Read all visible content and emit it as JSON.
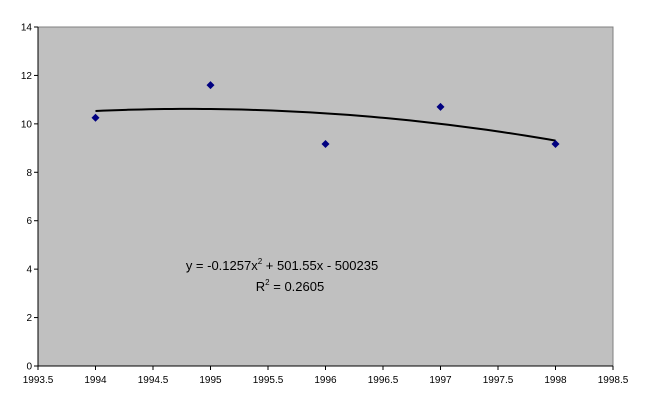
{
  "chart_data": {
    "type": "scatter",
    "x": [
      1994,
      1995,
      1996,
      1997,
      1998
    ],
    "values": [
      10.25,
      11.6,
      9.17,
      10.7,
      9.17
    ],
    "color": "#000080",
    "trendline": {
      "type": "polynomial",
      "order": 2,
      "color": "#000000"
    },
    "equation": [
      "y = -0.1257x",
      "2",
      " + 501.55x - 500235"
    ],
    "r_squared": [
      "R",
      "2",
      " = 0.2605"
    ],
    "xlim": [
      1993.5,
      1998.5
    ],
    "xticks": [
      1993.5,
      1994,
      1994.5,
      1995,
      1995.5,
      1996,
      1996.5,
      1997,
      1997.5,
      1998,
      1998.5
    ],
    "ylim": [
      0,
      14
    ],
    "yticks": [
      0,
      2,
      4,
      6,
      8,
      10,
      12,
      14
    ],
    "grid": false,
    "plot_background": "#c0c0c0"
  }
}
